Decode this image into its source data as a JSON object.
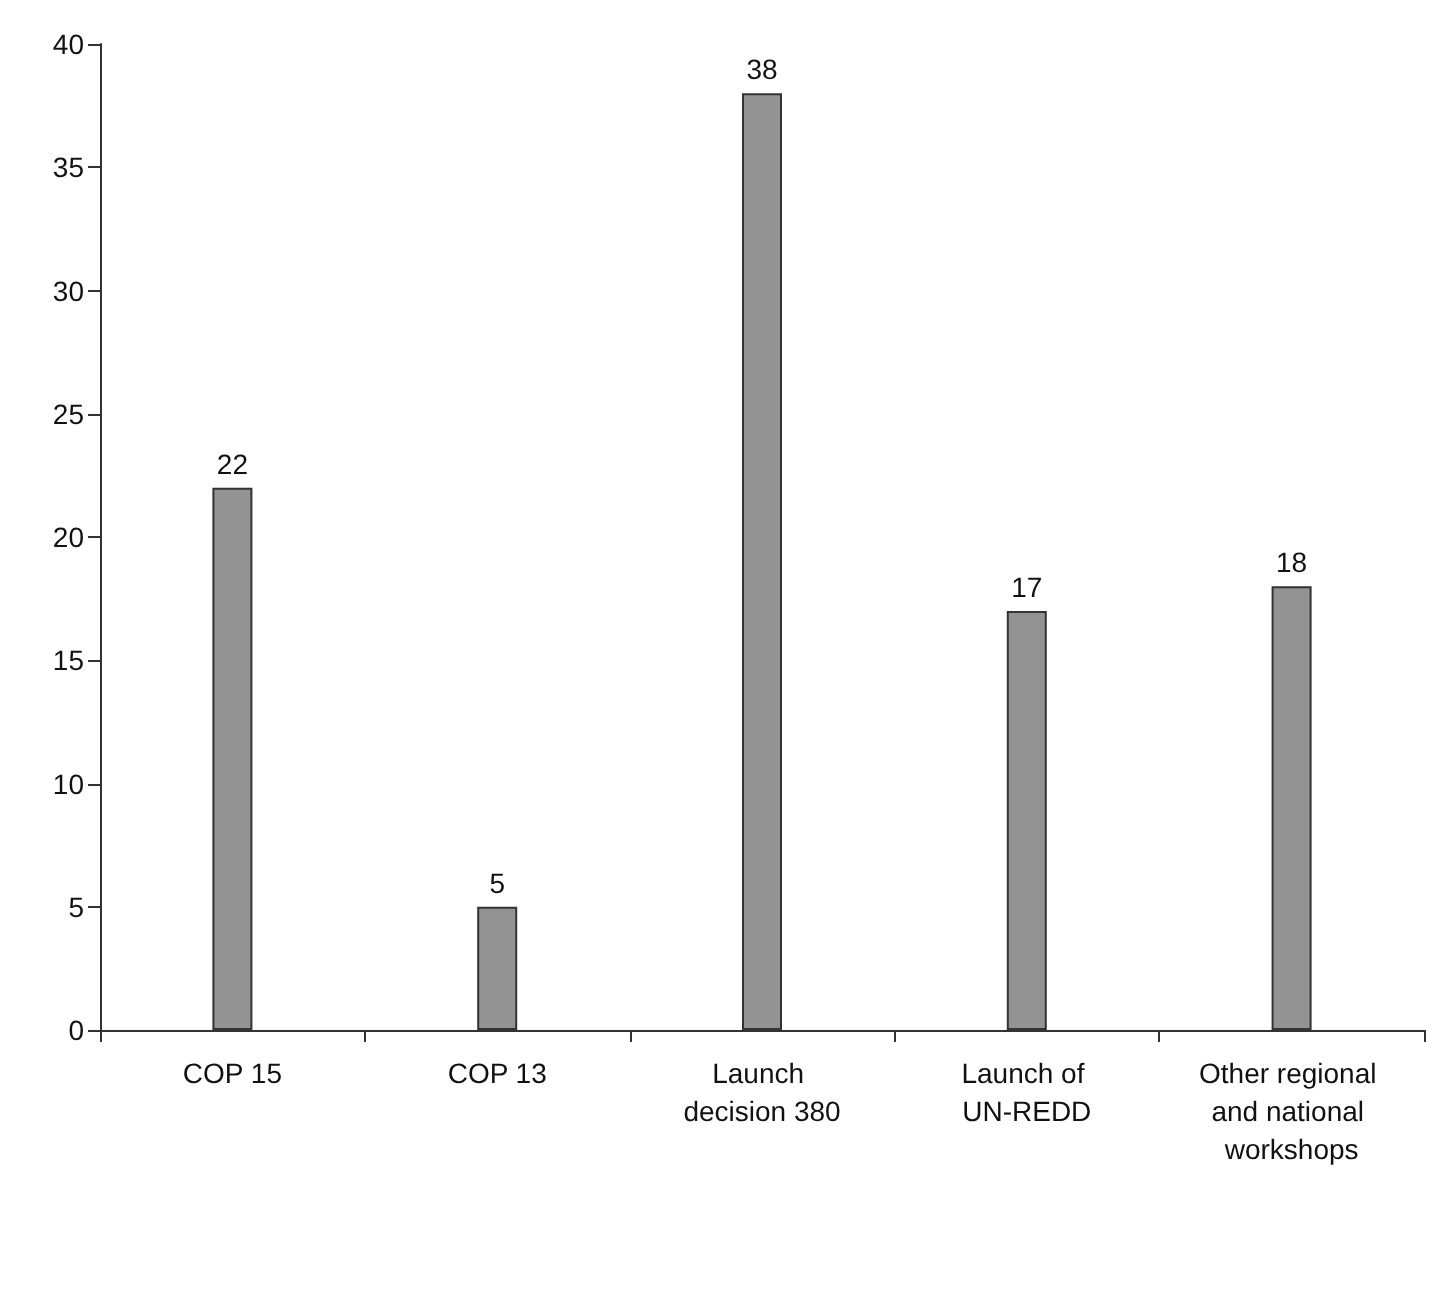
{
  "chart_data": {
    "type": "bar",
    "categories": [
      "COP 15",
      "COP 13",
      "Launch decision 380",
      "Launch of UN-REDD",
      "Other regional and national workshops"
    ],
    "values": [
      22,
      5,
      38,
      17,
      18
    ],
    "color": "#939393",
    "ylim": [
      0,
      40
    ],
    "yticks": [
      0,
      5,
      10,
      15,
      20,
      25,
      30,
      35,
      40
    ],
    "grid": false,
    "data_labels": true
  }
}
